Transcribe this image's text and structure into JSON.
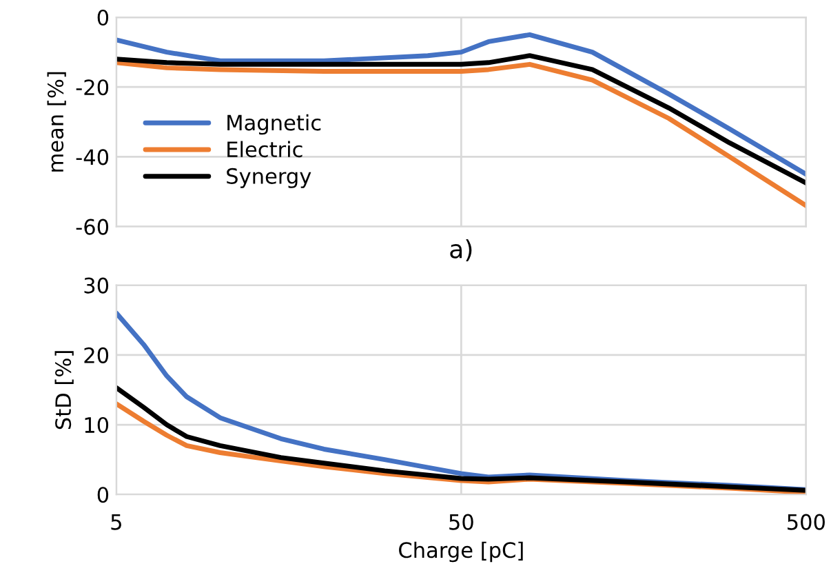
{
  "chart_data": [
    {
      "type": "line",
      "ylabel": "mean [%]",
      "annotations": [
        "a)"
      ],
      "log": "x",
      "xlim": [
        5,
        500
      ],
      "xticks": [
        5,
        50,
        500
      ],
      "ylim": [
        -60,
        0
      ],
      "yticks": [
        -60,
        -40,
        -20,
        0
      ],
      "grid": true,
      "legend": "center left",
      "tick_labels": "y",
      "series": [
        {
          "name": "Magnetic",
          "color": "#4472c4",
          "x": [
            5,
            7,
            10,
            20,
            40,
            50,
            60,
            79,
            120,
            200,
            300,
            500
          ],
          "values": [
            -6.5,
            -10,
            -12.5,
            -12.5,
            -11,
            -10,
            -7,
            -5,
            -10,
            -22,
            -32,
            -45
          ]
        },
        {
          "name": "Electric",
          "color": "#ed7d31",
          "x": [
            5,
            7,
            10,
            20,
            40,
            50,
            60,
            79,
            120,
            200,
            300,
            500
          ],
          "values": [
            -13,
            -14.5,
            -15,
            -15.5,
            -15.5,
            -15.5,
            -15,
            -13.5,
            -18,
            -29,
            -40,
            -54
          ]
        },
        {
          "name": "Synergy",
          "color": "#000000",
          "x": [
            5,
            7,
            10,
            20,
            40,
            50,
            60,
            79,
            120,
            200,
            300,
            500
          ],
          "values": [
            -12,
            -13,
            -13.5,
            -13.5,
            -13.5,
            -13.5,
            -13,
            -11,
            -15,
            -26,
            -36,
            -47.5
          ]
        }
      ]
    },
    {
      "type": "line",
      "ylabel": "StD [%]",
      "xlabel": "Charge [pC]",
      "log": "x",
      "xlim": [
        5,
        500
      ],
      "xticks": [
        5,
        50,
        500
      ],
      "ylim": [
        0,
        30
      ],
      "yticks": [
        0,
        10,
        20,
        30
      ],
      "grid": true,
      "series": [
        {
          "color": "#4472c4",
          "x": [
            5,
            6,
            7,
            8,
            10,
            15,
            20,
            30,
            50,
            60,
            79,
            150,
            300,
            500
          ],
          "values": [
            26,
            21.5,
            17,
            14,
            11,
            8,
            6.5,
            5,
            3,
            2.5,
            2.8,
            2,
            1.3,
            0.7
          ]
        },
        {
          "color": "#ed7d31",
          "x": [
            5,
            6,
            7,
            8,
            10,
            15,
            20,
            30,
            50,
            60,
            79,
            150,
            300,
            500
          ],
          "values": [
            13,
            10.5,
            8.5,
            7,
            6,
            4.8,
            4,
            3,
            2,
            1.8,
            2.2,
            1.6,
            0.9,
            0.3
          ]
        },
        {
          "color": "#000000",
          "x": [
            5,
            6,
            7,
            8,
            10,
            15,
            20,
            30,
            50,
            60,
            79,
            150,
            300,
            500
          ],
          "values": [
            15.3,
            12.5,
            10,
            8.3,
            7,
            5.3,
            4.5,
            3.4,
            2.3,
            2.2,
            2.4,
            1.8,
            1.1,
            0.6
          ]
        }
      ]
    }
  ]
}
